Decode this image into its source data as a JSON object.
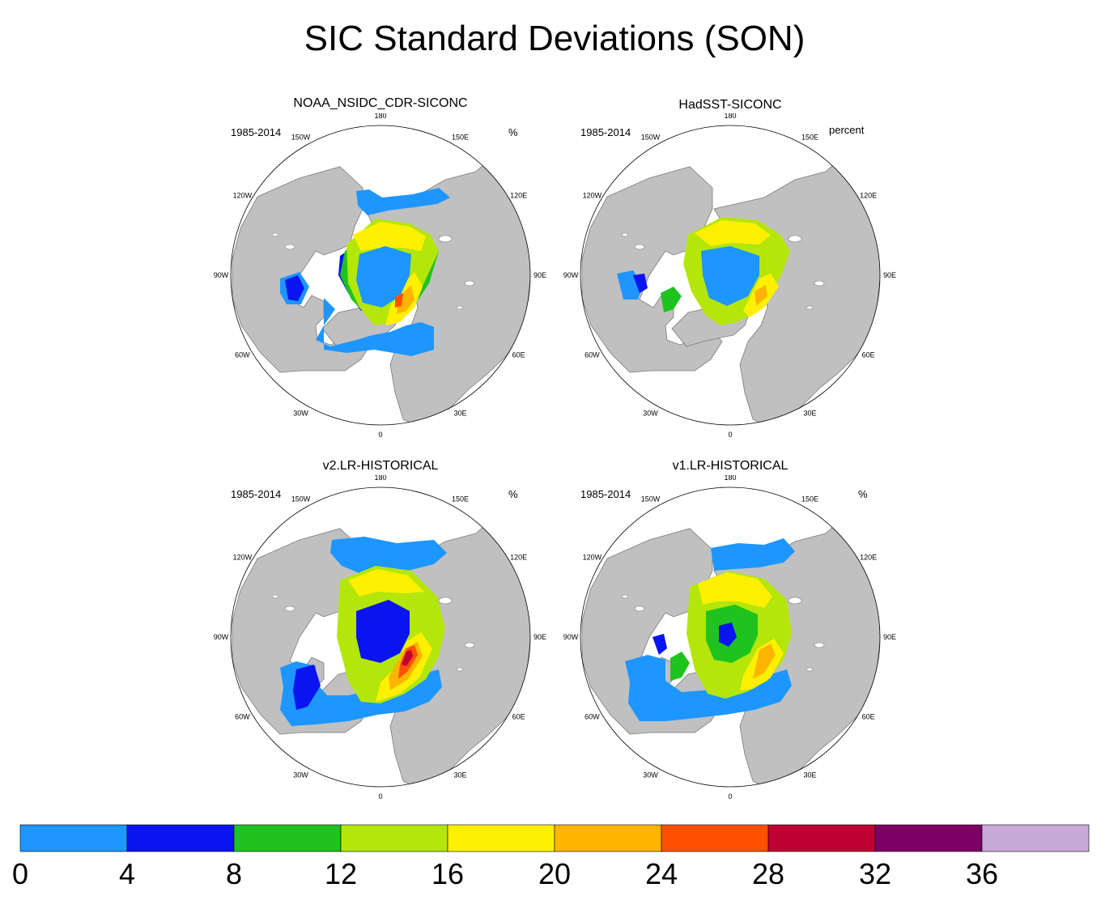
{
  "title": "SIC Standard Deviations (SON)",
  "colors": {
    "land": "#c0c0c0",
    "bins": [
      "#1e96ff",
      "#0a14f0",
      "#1ec31e",
      "#b4e60a",
      "#fff000",
      "#ffb400",
      "#ff5000",
      "#be0032",
      "#7d0064",
      "#c8aad7"
    ]
  },
  "chart_data": [
    {
      "type": "heatmap",
      "projection": "north-polar-stereographic",
      "title": "NOAA_NSIDC_CDR-SICONC",
      "period": "1985-2014",
      "units": "%",
      "lon_labels": [
        "180",
        "150E",
        "120E",
        "90E",
        "60E",
        "30E",
        "0",
        "30W",
        "60W",
        "90W",
        "120W",
        "150W"
      ]
    },
    {
      "type": "heatmap",
      "projection": "north-polar-stereographic",
      "title": "HadSST-SICONC",
      "period": "1985-2014",
      "units": "percent",
      "lon_labels": [
        "180",
        "150E",
        "120E",
        "90E",
        "60E",
        "30E",
        "0",
        "30W",
        "60W",
        "90W",
        "120W",
        "150W"
      ]
    },
    {
      "type": "heatmap",
      "projection": "north-polar-stereographic",
      "title": "v2.LR-HISTORICAL",
      "period": "1985-2014",
      "units": "%",
      "lon_labels": [
        "180",
        "150E",
        "120E",
        "90E",
        "60E",
        "30E",
        "0",
        "30W",
        "60W",
        "90W",
        "120W",
        "150W"
      ]
    },
    {
      "type": "heatmap",
      "projection": "north-polar-stereographic",
      "title": "v1.LR-HISTORICAL",
      "period": "1985-2014",
      "units": "%",
      "lon_labels": [
        "180",
        "150E",
        "120E",
        "90E",
        "60E",
        "30E",
        "0",
        "30W",
        "60W",
        "90W",
        "120W",
        "150W"
      ]
    }
  ],
  "colorbar": {
    "ticks": [
      "0",
      "4",
      "8",
      "12",
      "16",
      "20",
      "24",
      "28",
      "32",
      "36"
    ],
    "bins": [
      {
        "min": 0,
        "max": 4
      },
      {
        "min": 4,
        "max": 8
      },
      {
        "min": 8,
        "max": 12
      },
      {
        "min": 12,
        "max": 16
      },
      {
        "min": 16,
        "max": 20
      },
      {
        "min": 20,
        "max": 24
      },
      {
        "min": 24,
        "max": 28
      },
      {
        "min": 28,
        "max": 32
      },
      {
        "min": 32,
        "max": 36
      },
      {
        "min": 36,
        "max": null
      }
    ]
  }
}
